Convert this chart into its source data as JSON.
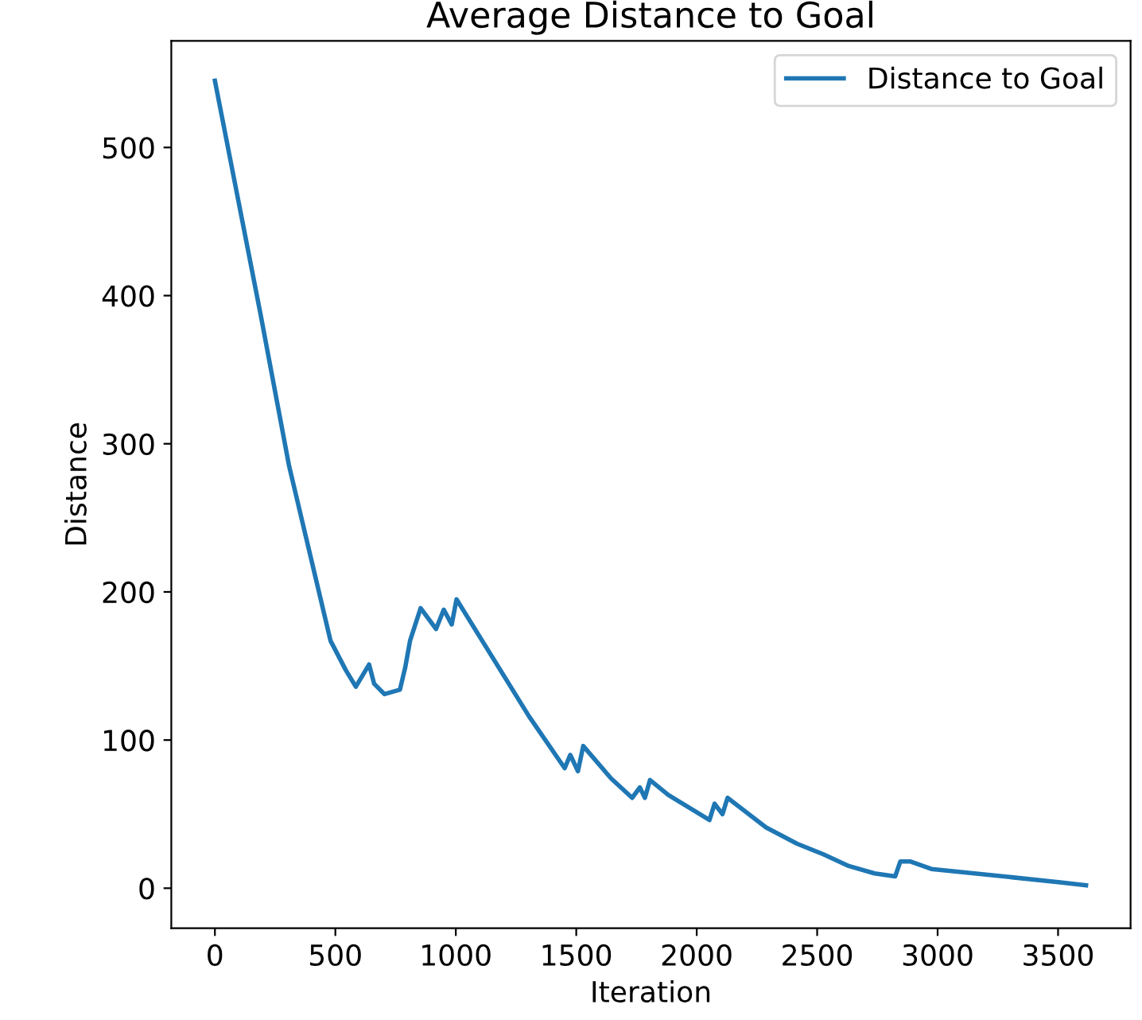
{
  "chart_data": {
    "type": "line",
    "title": "Average Distance to Goal",
    "xlabel": "Iteration",
    "ylabel": "Distance",
    "xlim": [
      -181,
      3801
    ],
    "ylim": [
      -27,
      572
    ],
    "xticks": [
      0,
      500,
      1000,
      1500,
      2000,
      2500,
      3000,
      3500
    ],
    "yticks": [
      0,
      100,
      200,
      300,
      400,
      500
    ],
    "grid": false,
    "legend": "top right",
    "series": [
      {
        "name": "Distance to Goal",
        "color": "#1f77b4",
        "x": [
          0,
          190,
          308,
          480,
          544,
          585,
          640,
          661,
          704,
          768,
          790,
          810,
          854,
          918,
          950,
          983,
          1003,
          1304,
          1452,
          1475,
          1507,
          1529,
          1645,
          1732,
          1764,
          1785,
          1806,
          1882,
          2053,
          2074,
          2107,
          2128,
          2288,
          2417,
          2524,
          2631,
          2738,
          2824,
          2845,
          2888,
          2974,
          3509,
          3616
        ],
        "values": [
          545,
          387,
          285,
          167,
          147,
          136,
          151,
          138,
          131,
          134,
          149,
          167,
          189,
          175,
          188,
          178,
          195,
          116,
          81,
          90,
          79,
          96,
          74,
          61,
          68,
          61,
          73,
          63,
          46,
          57,
          50,
          61,
          41,
          30,
          23,
          15,
          10,
          8,
          18,
          18,
          13,
          4,
          2
        ]
      }
    ]
  }
}
